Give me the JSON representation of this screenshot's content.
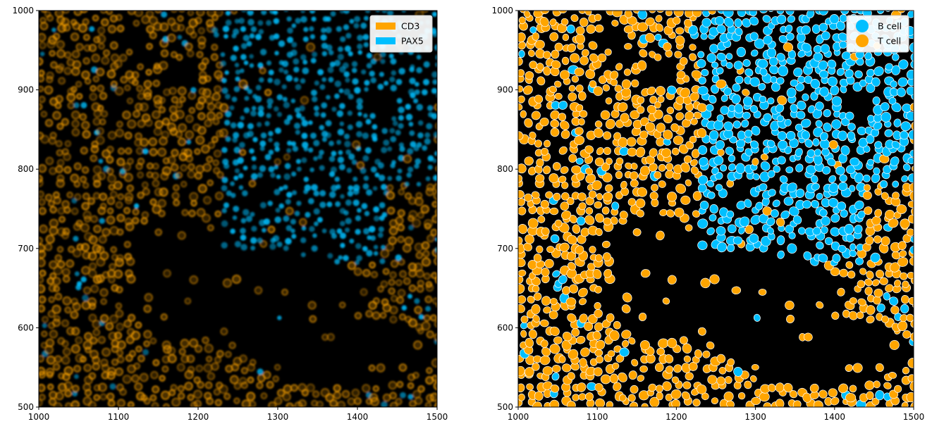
{
  "colors": {
    "cd3": "#ffa500",
    "pax5": "#00bfff",
    "t_cell": "#ffa500",
    "b_cell": "#00bfff",
    "background": "#000000"
  },
  "chart_data": [
    {
      "type": "image",
      "xlim": [
        1000,
        1500
      ],
      "ylim": [
        500,
        1000
      ],
      "x_ticks": [
        "1000",
        "1100",
        "1200",
        "1300",
        "1400",
        "1500"
      ],
      "y_ticks": [
        "500",
        "600",
        "700",
        "800",
        "900",
        "1000"
      ],
      "legend": {
        "placement": "top-right",
        "entries": [
          {
            "label": "CD3",
            "color": "#ffa500",
            "marker": "patch"
          },
          {
            "label": "PAX5",
            "color": "#00bfff",
            "marker": "patch"
          }
        ]
      }
    },
    {
      "type": "scatter",
      "xlim": [
        1000,
        1500
      ],
      "ylim": [
        500,
        1000
      ],
      "x_ticks": [
        "1000",
        "1100",
        "1200",
        "1300",
        "1400",
        "1500"
      ],
      "y_ticks": [
        "500",
        "600",
        "700",
        "800",
        "900",
        "1000"
      ],
      "legend": {
        "placement": "top-right",
        "entries": [
          {
            "label": "B cell",
            "color": "#00bfff",
            "marker": "circle"
          },
          {
            "label": "T cell",
            "color": "#ffa500",
            "marker": "circle"
          }
        ]
      }
    }
  ]
}
